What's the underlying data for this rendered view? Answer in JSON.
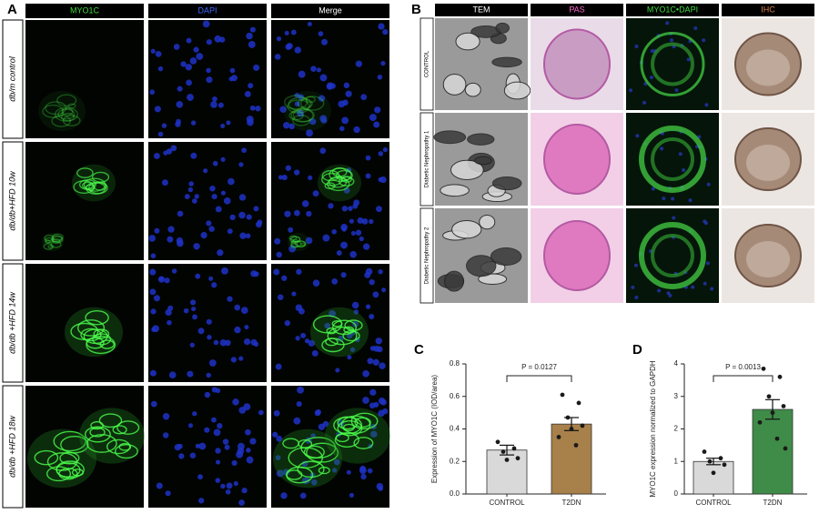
{
  "panel_a": {
    "label": "A",
    "columns": [
      "MYO1C",
      "DAPI",
      "Merge"
    ],
    "rows": [
      "db/m  control",
      "db/db+HFD  10w",
      "db/db +HFD  14w",
      "db/db +HFD  18w"
    ]
  },
  "panel_b": {
    "label": "B",
    "columns": [
      "TEM",
      "PAS",
      "MYO1C•DAPI",
      "IHC"
    ],
    "rows": [
      "CONTROL",
      "Diabetic Nephropathy 1",
      "Diabetic Nephropathy 2"
    ]
  },
  "chart_data": [
    {
      "type": "bar",
      "panel_label": "C",
      "ylabel": "Expression of MYO1C (IOD/area)",
      "categories": [
        "CONTROL",
        "T2DN"
      ],
      "values": [
        0.27,
        0.43
      ],
      "errors": [
        0.03,
        0.04
      ],
      "colors": [
        "#d9d9d9",
        "#a8804a"
      ],
      "points": [
        [
          0.32,
          0.28,
          0.26,
          0.22,
          0.21
        ],
        [
          0.61,
          0.56,
          0.47,
          0.42,
          0.4,
          0.35,
          0.3
        ]
      ],
      "annotation": "P = 0.0127",
      "ylim": [
        0,
        0.8
      ],
      "yticks": [
        {
          "value": 0,
          "label": "0.0"
        },
        0.2,
        0.4,
        0.6,
        0.8
      ]
    },
    {
      "type": "bar",
      "panel_label": "D",
      "ylabel": "MYO1C expression normalized to GAPDH",
      "categories": [
        "CONTROL",
        "T2DN"
      ],
      "values": [
        1.0,
        2.6
      ],
      "errors": [
        0.1,
        0.3
      ],
      "colors": [
        "#d9d9d9",
        "#3f8c48"
      ],
      "points": [
        [
          1.3,
          1.1,
          1.0,
          0.9,
          0.65
        ],
        [
          3.85,
          3.6,
          3.0,
          2.7,
          2.5,
          2.2,
          1.7,
          1.4
        ]
      ],
      "annotation": "P = 0.0013",
      "ylim": [
        0,
        4
      ],
      "yticks": [
        0,
        1,
        2,
        3,
        4
      ]
    }
  ]
}
